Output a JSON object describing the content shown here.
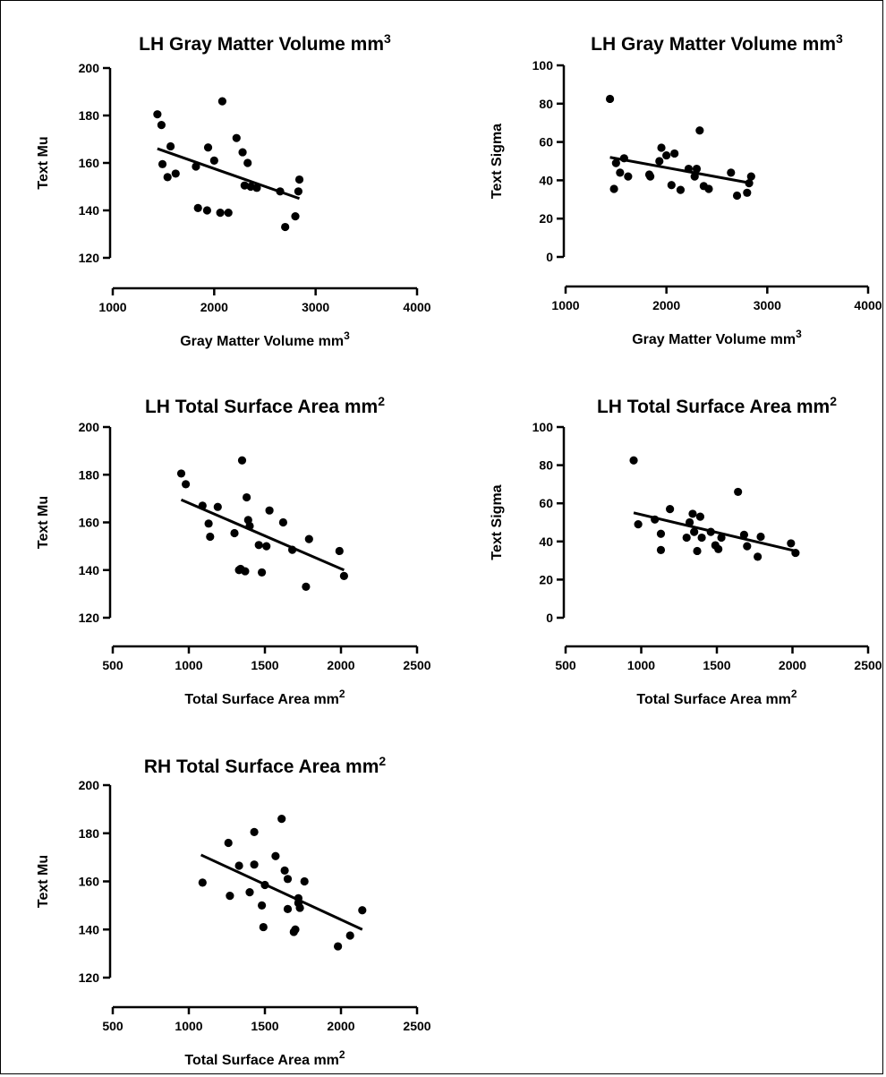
{
  "chart_data": [
    {
      "type": "scatter",
      "title": "LH Gray Matter Volume mm",
      "title_sup": "3",
      "xlabel": "Gray Matter Volume mm",
      "xlabel_sup": "3",
      "ylabel": "Text Mu",
      "xlim": [
        1000,
        4000
      ],
      "ylim": [
        120,
        200
      ],
      "xticks": [
        "1000",
        "2000",
        "3000",
        "4000"
      ],
      "yticks": [
        "120",
        "140",
        "160",
        "180",
        "200"
      ],
      "points": [
        [
          1440,
          180.5
        ],
        [
          1480,
          176
        ],
        [
          1490,
          159.5
        ],
        [
          1540,
          154
        ],
        [
          1570,
          167
        ],
        [
          1620,
          155.5
        ],
        [
          1820,
          158.5
        ],
        [
          1840,
          141
        ],
        [
          1930,
          140
        ],
        [
          1940,
          166.5
        ],
        [
          2000,
          161
        ],
        [
          2060,
          139
        ],
        [
          2080,
          186
        ],
        [
          2140,
          139
        ],
        [
          2220,
          170.5
        ],
        [
          2280,
          164.5
        ],
        [
          2300,
          150.5
        ],
        [
          2330,
          160
        ],
        [
          2360,
          150
        ],
        [
          2420,
          149.5
        ],
        [
          2650,
          148
        ],
        [
          2700,
          133
        ],
        [
          2800,
          137.5
        ],
        [
          2830,
          148
        ],
        [
          2840,
          153
        ]
      ],
      "fit": [
        [
          1440,
          166
        ],
        [
          2840,
          145
        ]
      ]
    },
    {
      "type": "scatter",
      "title": "LH Gray Matter Volume mm",
      "title_sup": "3",
      "xlabel": "Gray Matter Volume mm",
      "xlabel_sup": "3",
      "ylabel": "Text Sigma",
      "xlim": [
        1000,
        4000
      ],
      "ylim": [
        0,
        100
      ],
      "xticks": [
        "1000",
        "2000",
        "3000",
        "4000"
      ],
      "yticks": [
        "0",
        "20",
        "40",
        "60",
        "80",
        "100"
      ],
      "points": [
        [
          1440,
          82.5
        ],
        [
          1480,
          35.5
        ],
        [
          1500,
          49
        ],
        [
          1540,
          44
        ],
        [
          1580,
          51.5
        ],
        [
          1620,
          42
        ],
        [
          1830,
          43
        ],
        [
          1840,
          42
        ],
        [
          1930,
          50
        ],
        [
          1950,
          57
        ],
        [
          2000,
          53
        ],
        [
          2050,
          37.5
        ],
        [
          2080,
          54
        ],
        [
          2140,
          35
        ],
        [
          2220,
          46
        ],
        [
          2280,
          42
        ],
        [
          2300,
          46
        ],
        [
          2330,
          66
        ],
        [
          2370,
          37
        ],
        [
          2420,
          35.5
        ],
        [
          2640,
          44
        ],
        [
          2700,
          32
        ],
        [
          2800,
          33.5
        ],
        [
          2820,
          38.5
        ],
        [
          2840,
          42
        ]
      ],
      "fit": [
        [
          1440,
          52
        ],
        [
          2840,
          38.5
        ]
      ]
    },
    {
      "type": "scatter",
      "title": "LH Total Surface Area mm",
      "title_sup": "2",
      "xlabel": "Total Surface Area mm",
      "xlabel_sup": "2",
      "ylabel": "Text Mu",
      "xlim": [
        500,
        2500
      ],
      "ylim": [
        120,
        200
      ],
      "xticks": [
        "500",
        "1000",
        "1500",
        "2000",
        "2500"
      ],
      "yticks": [
        "120",
        "140",
        "160",
        "180",
        "200"
      ],
      "points": [
        [
          950,
          180.5
        ],
        [
          980,
          176
        ],
        [
          1090,
          167
        ],
        [
          1130,
          159.5
        ],
        [
          1140,
          154
        ],
        [
          1190,
          166.5
        ],
        [
          1300,
          155.5
        ],
        [
          1330,
          140
        ],
        [
          1340,
          140.5
        ],
        [
          1350,
          186
        ],
        [
          1370,
          139.5
        ],
        [
          1380,
          170.5
        ],
        [
          1390,
          161
        ],
        [
          1400,
          158.5
        ],
        [
          1460,
          150.5
        ],
        [
          1480,
          139
        ],
        [
          1510,
          150
        ],
        [
          1530,
          165
        ],
        [
          1620,
          160
        ],
        [
          1680,
          148.5
        ],
        [
          1770,
          133
        ],
        [
          1790,
          153
        ],
        [
          1990,
          148
        ],
        [
          2020,
          137.5
        ]
      ],
      "fit": [
        [
          950,
          169.5
        ],
        [
          2020,
          140
        ]
      ]
    },
    {
      "type": "scatter",
      "title": "LH Total Surface Area mm",
      "title_sup": "2",
      "xlabel": "Total Surface Area mm",
      "xlabel_sup": "2",
      "ylabel": "Text Sigma",
      "xlim": [
        500,
        2500
      ],
      "ylim": [
        0,
        100
      ],
      "xticks": [
        "500",
        "1000",
        "1500",
        "2000",
        "2500"
      ],
      "yticks": [
        "0",
        "20",
        "40",
        "60",
        "80",
        "100"
      ],
      "points": [
        [
          950,
          82.5
        ],
        [
          980,
          49
        ],
        [
          1090,
          51.5
        ],
        [
          1130,
          44
        ],
        [
          1130,
          35.5
        ],
        [
          1190,
          57
        ],
        [
          1300,
          42
        ],
        [
          1320,
          50
        ],
        [
          1340,
          54.5
        ],
        [
          1350,
          45
        ],
        [
          1370,
          35
        ],
        [
          1390,
          53
        ],
        [
          1400,
          42
        ],
        [
          1460,
          45
        ],
        [
          1490,
          38
        ],
        [
          1510,
          36
        ],
        [
          1530,
          42
        ],
        [
          1640,
          66
        ],
        [
          1680,
          43.5
        ],
        [
          1700,
          37.5
        ],
        [
          1770,
          32
        ],
        [
          1790,
          42.5
        ],
        [
          1990,
          39
        ],
        [
          2020,
          34
        ]
      ],
      "fit": [
        [
          950,
          55
        ],
        [
          2020,
          35
        ]
      ]
    },
    {
      "type": "scatter",
      "title": "RH Total Surface Area mm",
      "title_sup": "2",
      "xlabel": "Total Surface Area mm",
      "xlabel_sup": "2",
      "ylabel": "Text Mu",
      "xlim": [
        500,
        2500
      ],
      "ylim": [
        120,
        200
      ],
      "xticks": [
        "500",
        "1000",
        "1500",
        "2000",
        "2500"
      ],
      "yticks": [
        "120",
        "140",
        "160",
        "180",
        "200"
      ],
      "points": [
        [
          1090,
          159.5
        ],
        [
          1260,
          176
        ],
        [
          1270,
          154
        ],
        [
          1330,
          166.5
        ],
        [
          1400,
          155.5
        ],
        [
          1430,
          180.5
        ],
        [
          1430,
          167
        ],
        [
          1480,
          150
        ],
        [
          1490,
          141
        ],
        [
          1500,
          158.5
        ],
        [
          1570,
          170.5
        ],
        [
          1610,
          186
        ],
        [
          1630,
          164.5
        ],
        [
          1650,
          148.5
        ],
        [
          1650,
          161
        ],
        [
          1690,
          139
        ],
        [
          1700,
          140
        ],
        [
          1720,
          153
        ],
        [
          1720,
          151
        ],
        [
          1730,
          149
        ],
        [
          1760,
          160
        ],
        [
          1980,
          133
        ],
        [
          2060,
          137.5
        ],
        [
          2140,
          148
        ]
      ],
      "fit": [
        [
          1080,
          171
        ],
        [
          2140,
          140
        ]
      ]
    }
  ]
}
